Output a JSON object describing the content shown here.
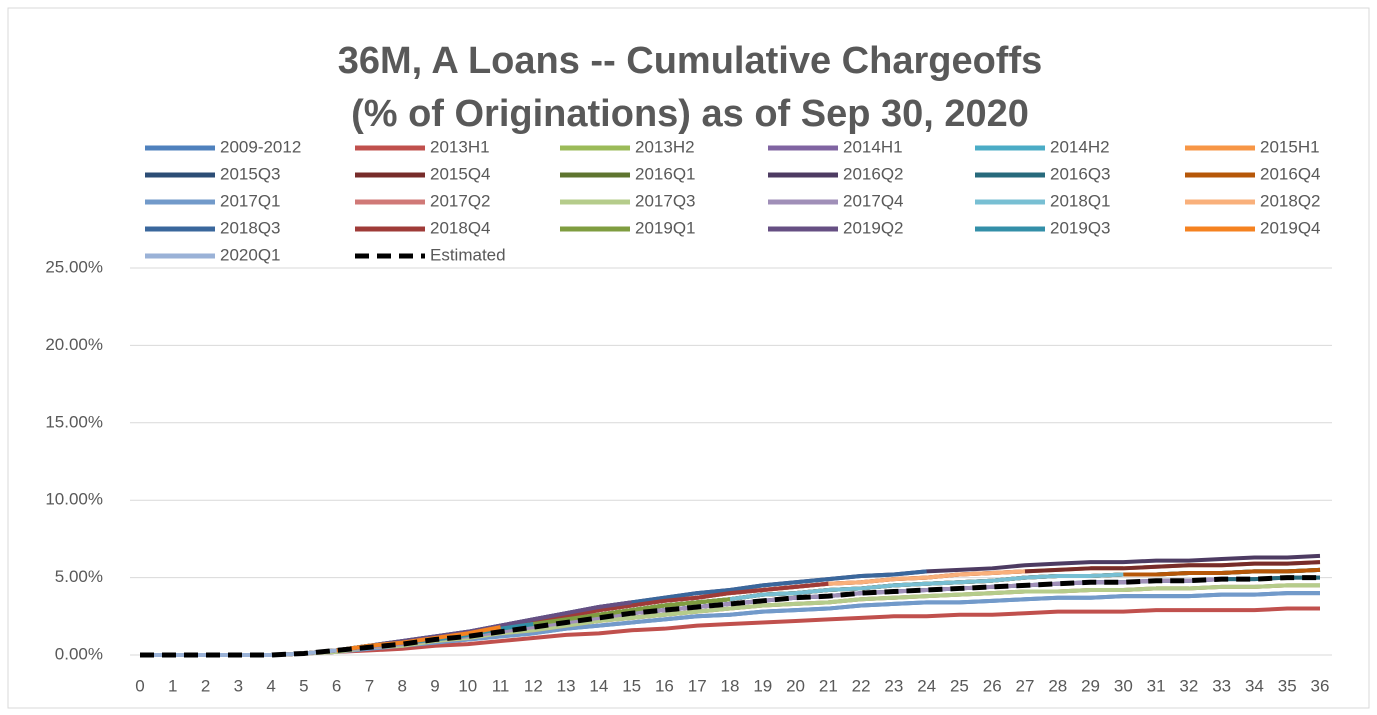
{
  "chart_data": {
    "type": "line",
    "title": [
      "36M, A Loans -- Cumulative Chargeoffs",
      "(% of Originations) as of Sep 30, 2020"
    ],
    "x": [
      0,
      1,
      2,
      3,
      4,
      5,
      6,
      7,
      8,
      9,
      10,
      11,
      12,
      13,
      14,
      15,
      16,
      17,
      18,
      19,
      20,
      21,
      22,
      23,
      24,
      25,
      26,
      27,
      28,
      29,
      30,
      31,
      32,
      33,
      34,
      35,
      36
    ],
    "xlim": [
      0,
      36
    ],
    "ylim": [
      0,
      25
    ],
    "yticks": [
      {
        "value": 0,
        "label": "0.00%"
      },
      {
        "value": 5,
        "label": "5.00%"
      },
      {
        "value": 10,
        "label": "10.00%"
      },
      {
        "value": 15,
        "label": "15.00%"
      },
      {
        "value": 20,
        "label": "20.00%"
      },
      {
        "value": 25,
        "label": "25.00%"
      }
    ],
    "grid": true,
    "legend": "top",
    "series": [
      {
        "name": "2009-2012",
        "color": "#4f81bd",
        "values": [
          0,
          0,
          0,
          0,
          0,
          0.1,
          0.2,
          0.4,
          0.6,
          0.8,
          1.0,
          1.2,
          1.4,
          1.7,
          1.9,
          2.1,
          2.3,
          2.5,
          2.6,
          2.8,
          2.9,
          3.0,
          3.2,
          3.3,
          3.4,
          3.4,
          3.5,
          3.6,
          3.7,
          3.7,
          3.8,
          3.8,
          3.8,
          3.9,
          3.9,
          4.0,
          4.0
        ]
      },
      {
        "name": "2013H1",
        "color": "#c0504d",
        "values": [
          0,
          0,
          0,
          0,
          0,
          0.1,
          0.2,
          0.3,
          0.4,
          0.6,
          0.7,
          0.9,
          1.1,
          1.3,
          1.4,
          1.6,
          1.7,
          1.9,
          2.0,
          2.1,
          2.2,
          2.3,
          2.4,
          2.5,
          2.5,
          2.6,
          2.6,
          2.7,
          2.8,
          2.8,
          2.8,
          2.9,
          2.9,
          2.9,
          2.9,
          3.0,
          3.0
        ]
      },
      {
        "name": "2013H2",
        "color": "#9bbb59",
        "values": [
          0,
          0,
          0,
          0,
          0,
          0.1,
          0.2,
          0.5,
          0.6,
          0.9,
          1.1,
          1.4,
          1.6,
          1.9,
          2.2,
          2.4,
          2.6,
          2.8,
          3.0,
          3.2,
          3.3,
          3.4,
          3.6,
          3.7,
          3.8,
          3.9,
          4.0,
          4.1,
          4.1,
          4.2,
          4.2,
          4.3,
          4.3,
          4.4,
          4.4,
          4.5,
          4.5
        ]
      },
      {
        "name": "2014H1",
        "color": "#8064a2",
        "values": [
          0,
          0,
          0,
          0,
          0,
          0.1,
          0.3,
          0.5,
          0.7,
          1.0,
          1.2,
          1.5,
          1.8,
          2.1,
          2.4,
          2.7,
          2.9,
          3.1,
          3.3,
          3.5,
          3.7,
          3.8,
          4.0,
          4.1,
          4.2,
          4.3,
          4.4,
          4.5,
          4.6,
          4.7,
          4.7,
          4.8,
          4.8,
          4.9,
          4.9,
          5.0,
          5.0
        ]
      },
      {
        "name": "2014H2",
        "color": "#4bacc6",
        "values": [
          0,
          0,
          0,
          0,
          0,
          0.1,
          0.3,
          0.6,
          0.8,
          1.0,
          1.3,
          1.7,
          2.0,
          2.3,
          2.6,
          2.9,
          3.2,
          3.4,
          3.6,
          3.9,
          4.0,
          4.2,
          4.3,
          4.5,
          4.6,
          4.7,
          4.8,
          5.0,
          5.1,
          5.1,
          5.2,
          5.2,
          5.3,
          5.3,
          5.4,
          5.4,
          5.5
        ]
      },
      {
        "name": "2015H1",
        "color": "#f79646",
        "values": [
          0,
          0,
          0,
          0,
          0,
          0.1,
          0.3,
          0.6,
          0.8,
          1.1,
          1.4,
          1.8,
          2.2,
          2.5,
          2.9,
          3.2,
          3.5,
          3.7,
          4.0,
          4.2,
          4.4,
          4.6,
          4.7,
          4.9,
          5.0,
          5.2,
          5.3,
          5.4,
          5.5,
          5.6,
          5.6,
          5.7,
          5.8,
          5.8,
          5.9,
          5.9,
          6.0
        ]
      },
      {
        "name": "2015Q3",
        "color": "#2c4d75",
        "values": [
          0,
          0,
          0,
          0,
          0,
          0.1,
          0.3,
          0.6,
          0.8,
          1.0,
          1.3,
          1.7,
          2.0,
          2.3,
          2.6,
          2.9,
          3.2,
          3.4,
          3.6,
          3.9,
          4.0,
          4.2,
          4.3,
          4.5,
          4.6,
          4.7,
          4.8,
          5.0,
          5.1,
          5.1,
          5.2,
          5.2,
          5.3,
          5.3,
          5.4,
          5.4,
          5.5
        ]
      },
      {
        "name": "2015Q4",
        "color": "#772c2a",
        "values": [
          0,
          0,
          0,
          0,
          0,
          0.1,
          0.3,
          0.6,
          0.8,
          1.1,
          1.4,
          1.8,
          2.2,
          2.5,
          2.9,
          3.2,
          3.5,
          3.7,
          4.0,
          4.2,
          4.4,
          4.6,
          4.7,
          4.9,
          5.0,
          5.2,
          5.3,
          5.4,
          5.5,
          5.6,
          5.6,
          5.7,
          5.8,
          5.8,
          5.9,
          5.9,
          6.0
        ]
      },
      {
        "name": "2016Q1",
        "color": "#5f7530",
        "values": [
          0,
          0,
          0,
          0,
          0,
          0.1,
          0.3,
          0.6,
          0.8,
          1.0,
          1.3,
          1.7,
          2.0,
          2.3,
          2.6,
          2.9,
          3.2,
          3.4,
          3.6,
          3.9,
          4.0,
          4.2,
          4.3,
          4.5,
          4.6,
          4.7,
          4.8,
          5.0,
          5.1,
          5.1,
          5.2,
          5.2,
          5.3,
          5.3,
          5.4,
          5.4,
          5.5
        ]
      },
      {
        "name": "2016Q2",
        "color": "#4d3b62",
        "values": [
          0,
          0,
          0,
          0,
          0,
          0.1,
          0.3,
          0.6,
          0.9,
          1.2,
          1.5,
          1.9,
          2.3,
          2.7,
          3.1,
          3.4,
          3.7,
          4.0,
          4.2,
          4.5,
          4.7,
          4.9,
          5.1,
          5.2,
          5.4,
          5.5,
          5.6,
          5.8,
          5.9,
          6.0,
          6.0,
          6.1,
          6.1,
          6.2,
          6.3,
          6.3,
          6.4
        ]
      },
      {
        "name": "2016Q3",
        "color": "#276a7c",
        "values": [
          0,
          0,
          0,
          0,
          0,
          0.1,
          0.3,
          0.5,
          0.7,
          1.0,
          1.2,
          1.5,
          1.8,
          2.1,
          2.4,
          2.7,
          2.9,
          3.1,
          3.3,
          3.5,
          3.7,
          3.8,
          4.0,
          4.1,
          4.2,
          4.3,
          4.4,
          4.5,
          4.6,
          4.7,
          4.7,
          4.8,
          4.8,
          4.9,
          4.9,
          5.0,
          5.0
        ]
      },
      {
        "name": "2016Q4",
        "color": "#b65708",
        "values": [
          0,
          0,
          0,
          0,
          0,
          0.1,
          0.3,
          0.6,
          0.8,
          1.0,
          1.3,
          1.7,
          2.0,
          2.3,
          2.6,
          2.9,
          3.2,
          3.4,
          3.6,
          3.9,
          4.0,
          4.2,
          4.3,
          4.5,
          4.6,
          4.7,
          4.8,
          5.0,
          5.1,
          5.1,
          5.2,
          5.2,
          5.3,
          5.3,
          5.4,
          5.4,
          5.5
        ]
      },
      {
        "name": "2017Q1",
        "color": "#729aca",
        "values": [
          0,
          0,
          0,
          0,
          0,
          0.1,
          0.2,
          0.4,
          0.6,
          0.8,
          1.0,
          1.2,
          1.4,
          1.7,
          1.9,
          2.1,
          2.3,
          2.5,
          2.6,
          2.8,
          2.9,
          3.0,
          3.2,
          3.3,
          3.4,
          3.4,
          3.5,
          3.6,
          3.7,
          3.7,
          3.8,
          3.8,
          3.8,
          3.9,
          3.9,
          4.0,
          4.0
        ]
      },
      {
        "name": "2017Q2",
        "color": "#d07977",
        "values": [
          0,
          0,
          0,
          0,
          0,
          0.1,
          0.2,
          0.5,
          0.6,
          0.9,
          1.1,
          1.4,
          1.6,
          1.9,
          2.2,
          2.4,
          2.6,
          2.8,
          3.0,
          3.2,
          3.3,
          3.4,
          3.6,
          3.7,
          3.8,
          3.9,
          4.0,
          4.1,
          4.1,
          4.2,
          4.2,
          4.3,
          4.3,
          4.4,
          4.4,
          4.5,
          4.5
        ]
      },
      {
        "name": "2017Q3",
        "color": "#b5cc8b",
        "values": [
          0,
          0,
          0,
          0,
          0,
          0.1,
          0.2,
          0.5,
          0.6,
          0.9,
          1.1,
          1.4,
          1.6,
          1.9,
          2.2,
          2.4,
          2.6,
          2.8,
          3.0,
          3.2,
          3.3,
          3.4,
          3.6,
          3.7,
          3.8,
          3.9,
          4.0,
          4.1,
          4.1,
          4.2,
          4.2,
          4.3,
          4.3,
          4.4,
          4.4,
          4.5,
          4.5
        ]
      },
      {
        "name": "2017Q4",
        "color": "#a08fb8",
        "values": [
          0,
          0,
          0,
          0,
          0,
          0.1,
          0.3,
          0.5,
          0.7,
          1.0,
          1.2,
          1.5,
          1.8,
          2.1,
          2.4,
          2.7,
          2.9,
          3.1,
          3.3,
          3.5,
          3.7,
          3.8,
          4.0,
          4.1,
          4.2,
          4.3,
          4.4,
          4.5,
          4.6,
          4.7,
          4.7,
          4.8,
          4.8,
          4.9,
          null,
          null,
          null
        ]
      },
      {
        "name": "2018Q1",
        "color": "#78bfd3",
        "values": [
          0,
          0,
          0,
          0,
          0,
          0.1,
          0.3,
          0.6,
          0.8,
          1.0,
          1.3,
          1.7,
          2.0,
          2.3,
          2.6,
          2.9,
          3.2,
          3.4,
          3.6,
          3.9,
          4.0,
          4.2,
          4.3,
          4.5,
          4.6,
          4.7,
          4.8,
          5.0,
          5.1,
          5.1,
          5.2,
          null,
          null,
          null,
          null,
          null,
          null
        ]
      },
      {
        "name": "2018Q2",
        "color": "#f9b07b",
        "values": [
          0,
          0,
          0,
          0,
          0,
          0.1,
          0.3,
          0.6,
          0.8,
          1.1,
          1.4,
          1.8,
          2.2,
          2.5,
          2.9,
          3.2,
          3.5,
          3.7,
          4.0,
          4.2,
          4.4,
          4.6,
          4.7,
          4.9,
          5.0,
          5.2,
          5.3,
          5.4,
          null,
          null,
          null,
          null,
          null,
          null,
          null,
          null,
          null
        ]
      },
      {
        "name": "2018Q3",
        "color": "#3a679c",
        "values": [
          0,
          0,
          0,
          0,
          0,
          0.1,
          0.3,
          0.6,
          0.9,
          1.2,
          1.5,
          1.9,
          2.3,
          2.7,
          3.1,
          3.4,
          3.7,
          4.0,
          4.2,
          4.5,
          4.7,
          4.9,
          5.1,
          5.2,
          5.4,
          null,
          null,
          null,
          null,
          null,
          null,
          null,
          null,
          null,
          null,
          null,
          null
        ]
      },
      {
        "name": "2018Q4",
        "color": "#9f3b38",
        "values": [
          0,
          0,
          0,
          0,
          0,
          0.1,
          0.3,
          0.6,
          0.8,
          1.1,
          1.4,
          1.8,
          2.2,
          2.5,
          2.9,
          3.2,
          3.5,
          3.7,
          4.0,
          4.2,
          4.4,
          4.6,
          null,
          null,
          null,
          null,
          null,
          null,
          null,
          null,
          null,
          null,
          null,
          null,
          null,
          null,
          null
        ]
      },
      {
        "name": "2019Q1",
        "color": "#7f9d40",
        "values": [
          0,
          0,
          0,
          0,
          0,
          0.1,
          0.3,
          0.6,
          0.8,
          1.0,
          1.3,
          1.7,
          2.0,
          2.3,
          2.6,
          2.9,
          3.2,
          3.4,
          3.6,
          null,
          null,
          null,
          null,
          null,
          null,
          null,
          null,
          null,
          null,
          null,
          null,
          null,
          null,
          null,
          null,
          null,
          null
        ]
      },
      {
        "name": "2019Q2",
        "color": "#664f83",
        "values": [
          0,
          0,
          0,
          0,
          0,
          0.1,
          0.3,
          0.6,
          0.9,
          1.2,
          1.5,
          1.9,
          2.3,
          2.7,
          3.1,
          3.4,
          null,
          null,
          null,
          null,
          null,
          null,
          null,
          null,
          null,
          null,
          null,
          null,
          null,
          null,
          null,
          null,
          null,
          null,
          null,
          null,
          null
        ]
      },
      {
        "name": "2019Q3",
        "color": "#338fa8",
        "values": [
          0,
          0,
          0,
          0,
          0,
          0.1,
          0.3,
          0.6,
          0.8,
          1.0,
          1.3,
          1.7,
          2.0,
          null,
          null,
          null,
          null,
          null,
          null,
          null,
          null,
          null,
          null,
          null,
          null,
          null,
          null,
          null,
          null,
          null,
          null,
          null,
          null,
          null,
          null,
          null,
          null
        ]
      },
      {
        "name": "2019Q4",
        "color": "#f58220",
        "values": [
          0,
          0,
          0,
          0,
          0,
          0.1,
          0.3,
          0.6,
          0.8,
          1.1,
          1.4,
          1.8,
          null,
          null,
          null,
          null,
          null,
          null,
          null,
          null,
          null,
          null,
          null,
          null,
          null,
          null,
          null,
          null,
          null,
          null,
          null,
          null,
          null,
          null,
          null,
          null,
          null
        ]
      },
      {
        "name": "2020Q1",
        "color": "#9ab2d7",
        "values": [
          0,
          0,
          0,
          0,
          0,
          0.1,
          0.3,
          null,
          null,
          null,
          null,
          null,
          null,
          null,
          null,
          null,
          null,
          null,
          null,
          null,
          null,
          null,
          null,
          null,
          null,
          null,
          null,
          null,
          null,
          null,
          null,
          null,
          null,
          null,
          null,
          null,
          null
        ]
      },
      {
        "name": "Estimated",
        "color": "#000000",
        "dashed": true,
        "values": [
          0,
          0,
          0,
          0,
          0,
          0.1,
          0.3,
          0.5,
          0.7,
          1.0,
          1.2,
          1.5,
          1.8,
          2.1,
          2.4,
          2.7,
          2.9,
          3.1,
          3.3,
          3.5,
          3.7,
          3.8,
          4.0,
          4.1,
          4.2,
          4.3,
          4.4,
          4.5,
          4.6,
          4.7,
          4.7,
          4.8,
          4.8,
          4.9,
          4.9,
          5.0,
          5.0
        ]
      }
    ]
  }
}
